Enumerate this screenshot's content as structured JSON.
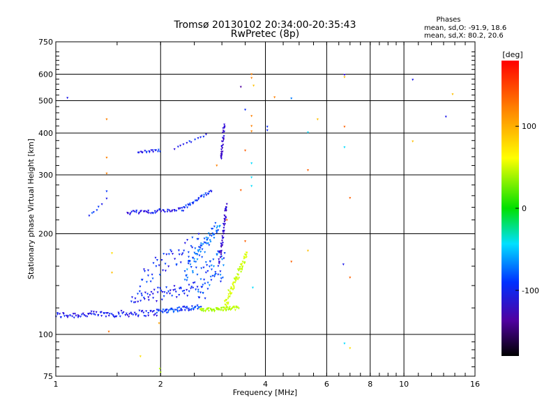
{
  "header": {
    "title_line1": "Tromsø 20130102 20:34:00-20:35:43",
    "title_line2": "RwPretec (8p)"
  },
  "stats": {
    "heading": "Phases",
    "line_o": "mean, sd,O: -91.9, 18.6",
    "line_x": "mean, sd,X:  80.2, 20.6"
  },
  "chart_data": {
    "type": "scatter",
    "title": "Tromsø 20130102 20:34:00-20:35:43",
    "subtitle": "RwPretec (8p)",
    "xlabel": "Frequency [MHz]",
    "ylabel": "Stationary phase Virtual Height [km]",
    "x_scale": "log",
    "y_scale": "log",
    "xlim": [
      1,
      16
    ],
    "ylim": [
      75,
      750
    ],
    "x_ticks": [
      1,
      2,
      4,
      6,
      8,
      10,
      16
    ],
    "y_ticks": [
      75,
      100,
      200,
      300,
      400,
      500,
      600,
      750
    ],
    "x_gridlines": [
      2,
      4,
      6,
      8,
      10
    ],
    "y_gridlines": [
      100,
      200,
      300,
      400,
      500,
      600
    ],
    "grid": true,
    "colorbar": {
      "label": "[deg]",
      "range": [
        -180,
        180
      ],
      "ticks": [
        100,
        0,
        -100
      ]
    },
    "traces": [
      {
        "x_start": 1.0,
        "x_end": 1.95,
        "y_start": 114,
        "y_end": 116,
        "count": 90,
        "spread": 2.5,
        "phase": -110
      },
      {
        "x_start": 1.95,
        "x_end": 2.6,
        "y_start": 117,
        "y_end": 121,
        "count": 55,
        "spread": 2.0,
        "phase": -95
      },
      {
        "x_start": 2.6,
        "x_end": 3.35,
        "y_start": 118,
        "y_end": 120,
        "count": 60,
        "spread": 1.5,
        "phase": 60
      },
      {
        "x_start": 3.05,
        "x_end": 3.55,
        "y_start": 122,
        "y_end": 175,
        "count": 70,
        "spread": 5.0,
        "phase": 75
      },
      {
        "x_start": 1.65,
        "x_end": 2.55,
        "y_start": 128,
        "y_end": 138,
        "count": 60,
        "spread": 6.0,
        "phase": -105
      },
      {
        "x_start": 2.55,
        "x_end": 3.05,
        "y_start": 138,
        "y_end": 165,
        "count": 55,
        "spread": 20.0,
        "phase": -90
      },
      {
        "x_start": 1.75,
        "x_end": 2.6,
        "y_start": 150,
        "y_end": 190,
        "count": 50,
        "spread": 12.0,
        "phase": -100
      },
      {
        "x_start": 2.35,
        "x_end": 2.95,
        "y_start": 150,
        "y_end": 215,
        "count": 70,
        "spread": 10.0,
        "phase": -85
      },
      {
        "x_start": 2.95,
        "x_end": 3.1,
        "y_start": 165,
        "y_end": 245,
        "count": 45,
        "spread": 6.0,
        "phase": -125
      },
      {
        "x_start": 1.6,
        "x_end": 2.3,
        "y_start": 231,
        "y_end": 236,
        "count": 45,
        "spread": 3.0,
        "phase": -110
      },
      {
        "x_start": 2.3,
        "x_end": 2.8,
        "y_start": 236,
        "y_end": 270,
        "count": 30,
        "spread": 3.0,
        "phase": -100
      },
      {
        "x_start": 1.72,
        "x_end": 2.0,
        "y_start": 350,
        "y_end": 355,
        "count": 18,
        "spread": 3.0,
        "phase": -105
      },
      {
        "x_start": 2.2,
        "x_end": 2.7,
        "y_start": 360,
        "y_end": 395,
        "count": 12,
        "spread": 4.0,
        "phase": -105
      },
      {
        "x_start": 2.98,
        "x_end": 3.05,
        "y_start": 335,
        "y_end": 420,
        "count": 28,
        "spread": 8.0,
        "phase": -125
      },
      {
        "x_start": 1.25,
        "x_end": 1.35,
        "y_start": 228,
        "y_end": 245,
        "count": 6,
        "spread": 3.0,
        "phase": -95
      }
    ],
    "points": [
      {
        "x": 1.08,
        "y": 510,
        "phase": -110
      },
      {
        "x": 1.4,
        "y": 440,
        "phase": 140
      },
      {
        "x": 1.4,
        "y": 338,
        "phase": 140
      },
      {
        "x": 1.4,
        "y": 303,
        "phase": 140
      },
      {
        "x": 1.4,
        "y": 268,
        "phase": -95
      },
      {
        "x": 1.4,
        "y": 255,
        "phase": -110
      },
      {
        "x": 1.42,
        "y": 102,
        "phase": 145
      },
      {
        "x": 1.45,
        "y": 175,
        "phase": 110
      },
      {
        "x": 1.45,
        "y": 153,
        "phase": 120
      },
      {
        "x": 1.75,
        "y": 86,
        "phase": 110
      },
      {
        "x": 1.98,
        "y": 108,
        "phase": 130
      },
      {
        "x": 1.99,
        "y": 79,
        "phase": 60
      },
      {
        "x": 2.0,
        "y": 77,
        "phase": 60
      },
      {
        "x": 2.9,
        "y": 320,
        "phase": 140
      },
      {
        "x": 3.1,
        "y": 220,
        "phase": 150
      },
      {
        "x": 3.4,
        "y": 550,
        "phase": -150
      },
      {
        "x": 3.5,
        "y": 470,
        "phase": -100
      },
      {
        "x": 3.5,
        "y": 355,
        "phase": 150
      },
      {
        "x": 3.4,
        "y": 270,
        "phase": 150
      },
      {
        "x": 3.5,
        "y": 190,
        "phase": 150
      },
      {
        "x": 3.65,
        "y": 600,
        "phase": 140
      },
      {
        "x": 3.65,
        "y": 585,
        "phase": 140
      },
      {
        "x": 3.7,
        "y": 555,
        "phase": 120
      },
      {
        "x": 3.65,
        "y": 450,
        "phase": 140
      },
      {
        "x": 3.65,
        "y": 420,
        "phase": 140
      },
      {
        "x": 3.65,
        "y": 405,
        "phase": 140
      },
      {
        "x": 3.65,
        "y": 325,
        "phase": -60
      },
      {
        "x": 3.65,
        "y": 295,
        "phase": -60
      },
      {
        "x": 3.65,
        "y": 278,
        "phase": -60
      },
      {
        "x": 3.68,
        "y": 138,
        "phase": -60
      },
      {
        "x": 4.05,
        "y": 418,
        "phase": -100
      },
      {
        "x": 4.05,
        "y": 408,
        "phase": -100
      },
      {
        "x": 4.25,
        "y": 512,
        "phase": 140
      },
      {
        "x": 4.75,
        "y": 508,
        "phase": -80
      },
      {
        "x": 4.75,
        "y": 165,
        "phase": 150
      },
      {
        "x": 5.3,
        "y": 402,
        "phase": -60
      },
      {
        "x": 5.3,
        "y": 310,
        "phase": 150
      },
      {
        "x": 5.3,
        "y": 178,
        "phase": 120
      },
      {
        "x": 5.65,
        "y": 440,
        "phase": 120
      },
      {
        "x": 6.75,
        "y": 598,
        "phase": -120
      },
      {
        "x": 6.75,
        "y": 588,
        "phase": 120
      },
      {
        "x": 6.75,
        "y": 418,
        "phase": 150
      },
      {
        "x": 6.75,
        "y": 363,
        "phase": -60
      },
      {
        "x": 6.7,
        "y": 162,
        "phase": -110
      },
      {
        "x": 6.75,
        "y": 94,
        "phase": -60
      },
      {
        "x": 7.0,
        "y": 256,
        "phase": 150
      },
      {
        "x": 7.0,
        "y": 148,
        "phase": 150
      },
      {
        "x": 7.0,
        "y": 91,
        "phase": 110
      },
      {
        "x": 10.6,
        "y": 578,
        "phase": -110
      },
      {
        "x": 10.6,
        "y": 378,
        "phase": 120
      },
      {
        "x": 13.2,
        "y": 448,
        "phase": -110
      },
      {
        "x": 13.8,
        "y": 523,
        "phase": 120
      }
    ]
  }
}
